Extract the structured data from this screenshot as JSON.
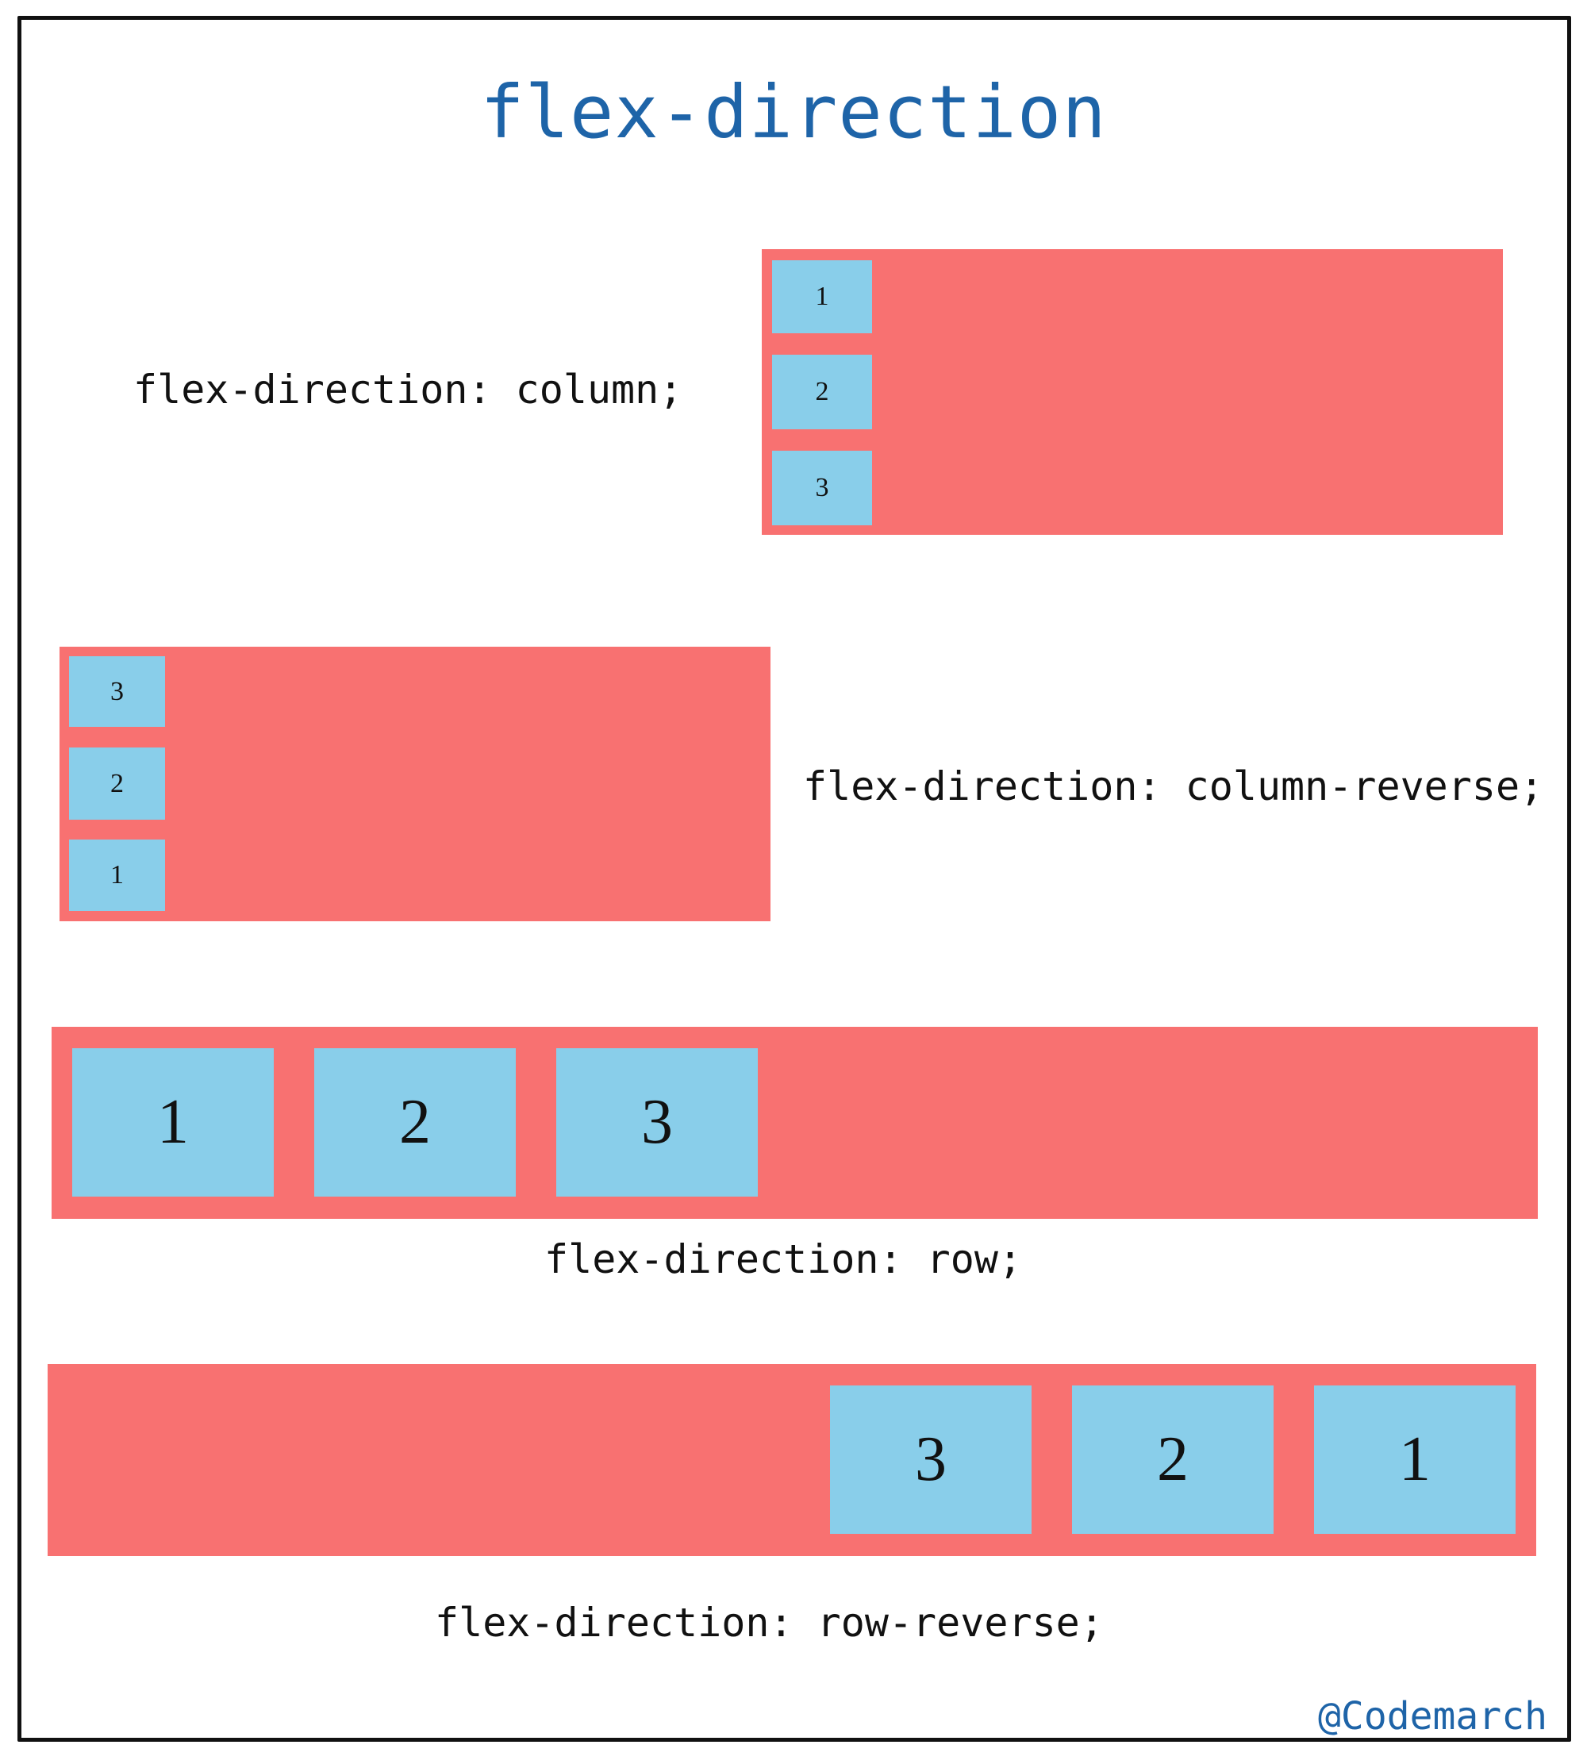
{
  "title": "flex-direction",
  "sections": {
    "column": {
      "label": "flex-direction: column;",
      "items": [
        "1",
        "2",
        "3"
      ]
    },
    "column_reverse": {
      "label": "flex-direction: column-reverse;",
      "items": [
        "3",
        "2",
        "1"
      ]
    },
    "row": {
      "label": "flex-direction: row;",
      "items": [
        "1",
        "2",
        "3"
      ]
    },
    "row_reverse": {
      "label": "flex-direction: row-reverse;",
      "items": [
        "3",
        "2",
        "1"
      ]
    }
  },
  "credit": "@Codemarch",
  "colors": {
    "container": "#f87171",
    "item": "#89ceea",
    "title": "#1e64a8",
    "frame": "#111111"
  }
}
